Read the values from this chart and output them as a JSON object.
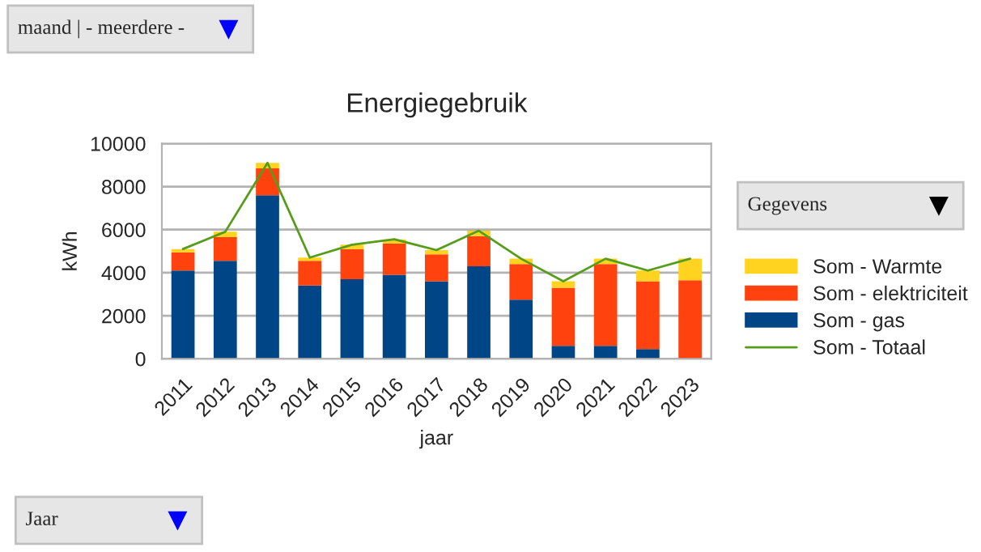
{
  "chart_data": {
    "type": "bar",
    "title": "Energiegebruik",
    "xlabel": "jaar",
    "ylabel": "kWh",
    "categories": [
      "2011",
      "2012",
      "2013",
      "2014",
      "2015",
      "2016",
      "2017",
      "2018",
      "2019",
      "2020",
      "2021",
      "2022",
      "2023"
    ],
    "stacked": true,
    "series": [
      {
        "name": "Som - gas",
        "color": "#004586",
        "values": [
          4100,
          4550,
          7600,
          3400,
          3700,
          3900,
          3600,
          4300,
          2750,
          600,
          600,
          450,
          0
        ]
      },
      {
        "name": "Som - elektriciteit",
        "color": "#ff420e",
        "values": [
          850,
          1100,
          1250,
          1150,
          1400,
          1450,
          1250,
          1400,
          1650,
          2700,
          3800,
          3150,
          3650
        ]
      },
      {
        "name": "Som - Warmte",
        "color": "#ffd320",
        "values": [
          150,
          250,
          250,
          150,
          200,
          200,
          200,
          250,
          250,
          300,
          250,
          500,
          1000
        ]
      },
      {
        "name": "Som - Totaal",
        "color": "#579d1c",
        "type": "line",
        "values": [
          5100,
          5900,
          9100,
          4700,
          5300,
          5550,
          5050,
          5950,
          4650,
          3600,
          4650,
          4100,
          4650
        ]
      }
    ],
    "ylim": [
      0,
      10000
    ],
    "yticks": [
      0,
      2000,
      4000,
      6000,
      8000,
      10000
    ],
    "grid": "y",
    "legend": "right",
    "annotations": [
      "maand | - meerdere -",
      "Gegevens",
      "Jaar"
    ]
  }
}
